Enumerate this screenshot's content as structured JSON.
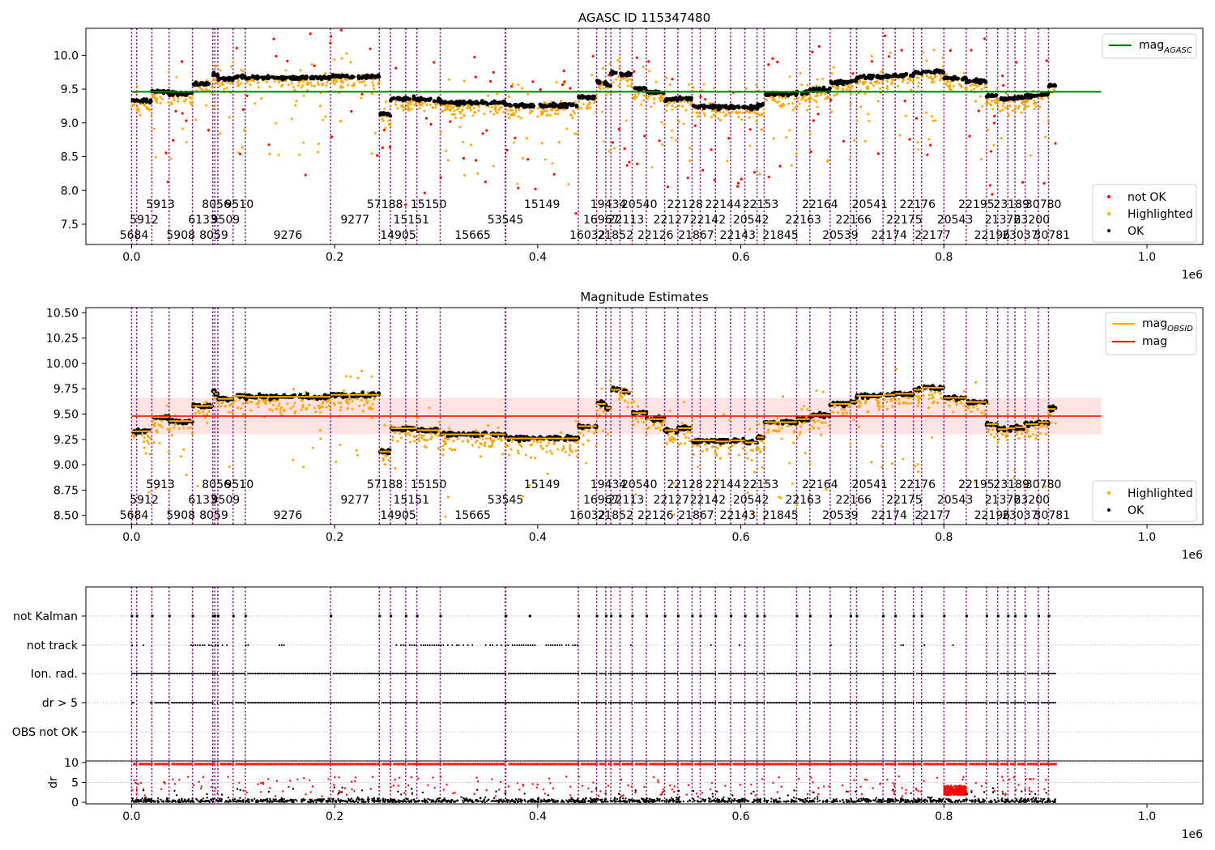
{
  "chart_data": [
    {
      "type": "scatter",
      "title": "AGASC ID 115347480",
      "xlim": [
        -45000,
        1055000
      ],
      "ylim": [
        7.2,
        10.4
      ],
      "x_ticks": [
        0,
        0.2,
        0.4,
        0.6,
        0.8,
        1.0
      ],
      "x_tick_labels": [
        "0.0",
        "0.2",
        "0.4",
        "0.6",
        "0.8",
        "1.0"
      ],
      "x_offset_label": "1e6",
      "y_ticks": [
        7.5,
        8.0,
        8.5,
        9.0,
        9.5,
        10.0
      ],
      "y_tick_labels": [
        "7.5",
        "8.0",
        "8.5",
        "9.0",
        "9.5",
        "10.0"
      ],
      "reference_line": {
        "y": 9.46,
        "x_range": [
          0,
          955000
        ],
        "color": "#008000"
      },
      "legend": {
        "placement": "top-right + bottom-right",
        "line_entries": [
          {
            "label": "mag",
            "subscript": "AGASC",
            "color": "#008000"
          }
        ],
        "marker_entries": [
          {
            "label": "not OK",
            "color": "#ff0000"
          },
          {
            "label": "Highlighted",
            "color": "#ffa500"
          },
          {
            "label": "OK",
            "color": "#000000"
          }
        ]
      },
      "series": [
        {
          "name": "OK",
          "color": "#000000"
        },
        {
          "name": "Highlighted",
          "color": "#ffa500"
        },
        {
          "name": "not OK",
          "color": "#ff0000"
        }
      ]
    },
    {
      "type": "scatter",
      "title": "Magnitude Estimates",
      "xlim": [
        -45000,
        1055000
      ],
      "ylim": [
        8.41,
        10.55
      ],
      "x_ticks": [
        0,
        0.2,
        0.4,
        0.6,
        0.8,
        1.0
      ],
      "x_tick_labels": [
        "0.0",
        "0.2",
        "0.4",
        "0.6",
        "0.8",
        "1.0"
      ],
      "x_offset_label": "1e6",
      "y_ticks": [
        8.5,
        8.75,
        9.0,
        9.25,
        9.5,
        9.75,
        10.0,
        10.25,
        10.5
      ],
      "y_tick_labels": [
        "8.50",
        "8.75",
        "9.00",
        "9.25",
        "9.50",
        "9.75",
        "10.00",
        "10.25",
        "10.50"
      ],
      "mean_line": {
        "y": 9.48,
        "band": [
          9.3,
          9.66
        ],
        "x_range": [
          0,
          955000
        ],
        "color": "#ff0000"
      },
      "legend": {
        "placement": "top-right + bottom-right",
        "line_entries": [
          {
            "label": "mag",
            "subscript": "OBSID",
            "color": "#ffa500"
          },
          {
            "label": "mag",
            "subscript": "",
            "color": "#ff0000"
          }
        ],
        "marker_entries": [
          {
            "label": "Highlighted",
            "color": "#ffa500"
          },
          {
            "label": "OK",
            "color": "#000000"
          }
        ]
      },
      "series": [
        {
          "name": "Highlighted",
          "color": "#ffa500"
        },
        {
          "name": "OK",
          "color": "#000000"
        },
        {
          "name": "mag",
          "color": "#ffa500"
        }
      ]
    },
    {
      "type": "scatter",
      "title": "",
      "xlim": [
        -45000,
        1055000
      ],
      "x_ticks": [
        0,
        0.2,
        0.4,
        0.6,
        0.8,
        1.0
      ],
      "x_tick_labels": [
        "0.0",
        "0.2",
        "0.4",
        "0.6",
        "0.8",
        "1.0"
      ],
      "x_offset_label": "1e6",
      "flag_categories": [
        "not Kalman",
        "not track",
        "Ion. rad.",
        "dr > 5",
        "OBS not OK"
      ],
      "dr_panel": {
        "ylabel": "dr",
        "ylim": [
          -0.4,
          10.4
        ],
        "y_ticks": [
          0,
          5,
          10
        ],
        "y_tick_labels": [
          "0",
          "5",
          "10"
        ]
      }
    }
  ],
  "obsids": [
    {
      "id": "5684",
      "start": 0,
      "end": 5000,
      "mag": 9.33,
      "row": 0
    },
    {
      "id": "5912",
      "start": 5000,
      "end": 20000,
      "mag": 9.33,
      "row": 1
    },
    {
      "id": "5913",
      "start": 20000,
      "end": 37000,
      "mag": 9.47,
      "row": 2
    },
    {
      "id": "5908",
      "start": 37000,
      "end": 60000,
      "mag": 9.43,
      "row": 0
    },
    {
      "id": "6133",
      "start": 60000,
      "end": 80000,
      "mag": 9.58,
      "row": 1
    },
    {
      "id": "8059",
      "start": 80000,
      "end": 82000,
      "mag": 9.72,
      "row": 0
    },
    {
      "id": "8056",
      "start": 82000,
      "end": 85000,
      "mag": 9.7,
      "row": 2
    },
    {
      "id": "9509",
      "start": 85000,
      "end": 100000,
      "mag": 9.65,
      "row": 1
    },
    {
      "id": "9510",
      "start": 100000,
      "end": 112000,
      "mag": 9.68,
      "row": 2
    },
    {
      "id": "9276",
      "start": 112000,
      "end": 196000,
      "mag": 9.67,
      "row": 0
    },
    {
      "id": "9277",
      "start": 196000,
      "end": 244000,
      "mag": 9.69,
      "row": 1
    },
    {
      "id": "57188",
      "start": 244000,
      "end": 255000,
      "mag": 9.13,
      "row": 2
    },
    {
      "id": "14905",
      "start": 255000,
      "end": 270000,
      "mag": 9.36,
      "row": 0
    },
    {
      "id": "15151",
      "start": 270000,
      "end": 281000,
      "mag": 9.36,
      "row": 1
    },
    {
      "id": "15150",
      "start": 281000,
      "end": 304000,
      "mag": 9.34,
      "row": 2
    },
    {
      "id": "15665",
      "start": 304000,
      "end": 368000,
      "mag": 9.3,
      "row": 0
    },
    {
      "id": "53545",
      "start": 368000,
      "end": 368500,
      "mag": 9.29,
      "row": 1
    },
    {
      "id": "15149",
      "start": 368500,
      "end": 440000,
      "mag": 9.26,
      "row": 2
    },
    {
      "id": "16032",
      "start": 440000,
      "end": 458000,
      "mag": 9.38,
      "row": 0
    },
    {
      "id": "16967",
      "start": 458000,
      "end": 467000,
      "mag": 9.6,
      "row": 1
    },
    {
      "id": "19434",
      "start": 467000,
      "end": 472000,
      "mag": 9.56,
      "row": 2
    },
    {
      "id": "21852",
      "start": 472000,
      "end": 481000,
      "mag": 9.74,
      "row": 0
    },
    {
      "id": "22113",
      "start": 481000,
      "end": 493000,
      "mag": 9.72,
      "row": 1
    },
    {
      "id": "20540",
      "start": 493000,
      "end": 507000,
      "mag": 9.51,
      "row": 2
    },
    {
      "id": "22126",
      "start": 507000,
      "end": 525000,
      "mag": 9.45,
      "row": 0
    },
    {
      "id": "22127",
      "start": 525000,
      "end": 538000,
      "mag": 9.34,
      "row": 1
    },
    {
      "id": "22128",
      "start": 538000,
      "end": 552000,
      "mag": 9.36,
      "row": 2
    },
    {
      "id": "21867",
      "start": 552000,
      "end": 560000,
      "mag": 9.24,
      "row": 0
    },
    {
      "id": "22142",
      "start": 560000,
      "end": 575000,
      "mag": 9.24,
      "row": 1
    },
    {
      "id": "22144",
      "start": 575000,
      "end": 590000,
      "mag": 9.23,
      "row": 2
    },
    {
      "id": "22143",
      "start": 590000,
      "end": 604000,
      "mag": 9.24,
      "row": 0
    },
    {
      "id": "20542",
      "start": 604000,
      "end": 616000,
      "mag": 9.22,
      "row": 1
    },
    {
      "id": "22153",
      "start": 616000,
      "end": 623000,
      "mag": 9.27,
      "row": 2
    },
    {
      "id": "21845",
      "start": 623000,
      "end": 655000,
      "mag": 9.42,
      "row": 0
    },
    {
      "id": "22163",
      "start": 655000,
      "end": 668000,
      "mag": 9.45,
      "row": 1
    },
    {
      "id": "22164",
      "start": 668000,
      "end": 688000,
      "mag": 9.49,
      "row": 2
    },
    {
      "id": "20539",
      "start": 688000,
      "end": 708000,
      "mag": 9.6,
      "row": 0
    },
    {
      "id": "22166",
      "start": 708000,
      "end": 714000,
      "mag": 9.62,
      "row": 1
    },
    {
      "id": "20541",
      "start": 714000,
      "end": 740000,
      "mag": 9.68,
      "row": 2
    },
    {
      "id": "22174",
      "start": 740000,
      "end": 752000,
      "mag": 9.69,
      "row": 0
    },
    {
      "id": "22175",
      "start": 752000,
      "end": 770000,
      "mag": 9.7,
      "row": 1
    },
    {
      "id": "22176",
      "start": 770000,
      "end": 778000,
      "mag": 9.74,
      "row": 2
    },
    {
      "id": "22177",
      "start": 778000,
      "end": 800000,
      "mag": 9.76,
      "row": 0
    },
    {
      "id": "20543",
      "start": 800000,
      "end": 822000,
      "mag": 9.66,
      "row": 1
    },
    {
      "id": "22195",
      "start": 822000,
      "end": 842000,
      "mag": 9.62,
      "row": 2
    },
    {
      "id": "22196",
      "start": 842000,
      "end": 853000,
      "mag": 9.4,
      "row": 0
    },
    {
      "id": "21376",
      "start": 853000,
      "end": 863000,
      "mag": 9.35,
      "row": 1
    },
    {
      "id": "23189",
      "start": 863000,
      "end": 870000,
      "mag": 9.36,
      "row": 2
    },
    {
      "id": "23037",
      "start": 870000,
      "end": 880000,
      "mag": 9.37,
      "row": 0
    },
    {
      "id": "23200",
      "start": 880000,
      "end": 893000,
      "mag": 9.4,
      "row": 1
    },
    {
      "id": "30780",
      "start": 893000,
      "end": 903000,
      "mag": 9.42,
      "row": 2
    },
    {
      "id": "30781",
      "start": 903000,
      "end": 910000,
      "mag": 9.55,
      "row": 0
    }
  ],
  "colors": {
    "ok": "#000000",
    "highlighted": "#ffa500",
    "not_ok": "#ff0000",
    "obsid_line": "#800080",
    "agasc_line": "#008000",
    "mag_line": "#ff0000",
    "mag_obsid_line": "#ffa500",
    "band": "#ffcccc"
  }
}
